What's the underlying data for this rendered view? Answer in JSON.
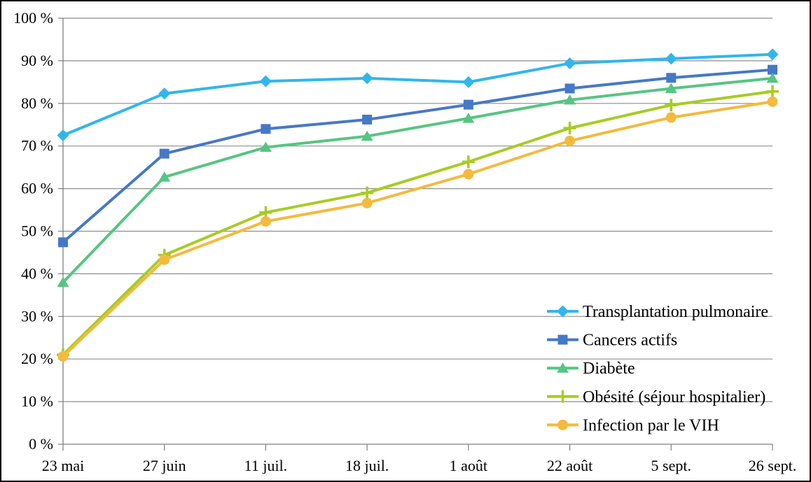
{
  "chart_data": {
    "type": "line",
    "title": "",
    "xlabel": "",
    "ylabel": "",
    "categories": [
      "23 mai",
      "27 juin",
      "11 juil.",
      "18 juil.",
      "1 août",
      "22 août",
      "5 sept.",
      "26 sept."
    ],
    "y_tick_labels": [
      "0 %",
      "10 %",
      "20 %",
      "30 %",
      "40 %",
      "50 %",
      "60 %",
      "70 %",
      "80 %",
      "90 %",
      "100 %"
    ],
    "ylim": [
      0,
      100
    ],
    "y_step": 10,
    "grid": "horizontal",
    "legend_position": "inside-lower-right",
    "series": [
      {
        "name": "Transplantation pulmonaire",
        "marker": "diamond",
        "color": "#31B6EC",
        "values": [
          72.5,
          82.3,
          85.2,
          85.9,
          85.0,
          89.4,
          90.5,
          91.5
        ]
      },
      {
        "name": "Cancers actifs",
        "marker": "square",
        "color": "#4678C8",
        "values": [
          47.4,
          68.2,
          74.0,
          76.2,
          79.7,
          83.5,
          86.0,
          87.9
        ]
      },
      {
        "name": "Diabète",
        "marker": "triangle",
        "color": "#56C581",
        "values": [
          38.0,
          62.7,
          69.7,
          72.3,
          76.5,
          80.8,
          83.5,
          85.9
        ]
      },
      {
        "name": "Obésité (séjour hospitalier)",
        "marker": "plus",
        "color": "#A6CC22",
        "values": [
          21.0,
          44.4,
          54.4,
          59.0,
          66.3,
          74.2,
          79.6,
          82.8
        ]
      },
      {
        "name": "Infection par le VIH",
        "marker": "circle",
        "color": "#F4BA3E",
        "values": [
          20.6,
          43.3,
          52.3,
          56.6,
          63.4,
          71.2,
          76.7,
          80.4
        ]
      }
    ]
  },
  "style": {
    "grid_color": "#8E8E8E",
    "axis_color": "#7F7F7F",
    "text_color": "#000000",
    "background": "#FFFFFF",
    "border_color": "#000000"
  }
}
